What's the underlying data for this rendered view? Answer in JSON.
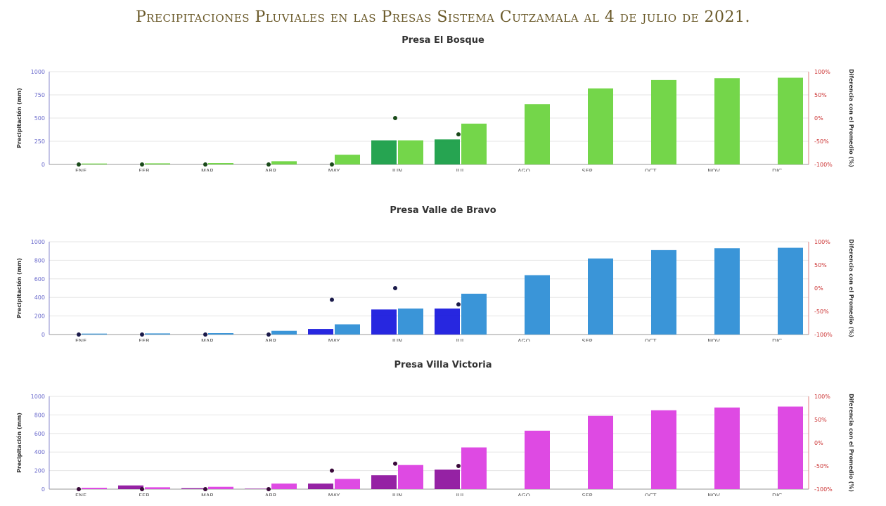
{
  "title": "Precipitaciones Pluviales en las Presas Sistema Cutzamala al 4 de julio de 2021.",
  "y_left_label": "Precipitación (mm)",
  "y_right_label": "Diferencia con el Promedio (%)",
  "chart_data": [
    {
      "type": "bar",
      "title": "Presa El Bosque",
      "categories": [
        "ENE",
        "FEB",
        "MAR",
        "ABR",
        "MAY",
        "JUN",
        "JUL",
        "AGO",
        "SEP",
        "OCT",
        "NOV",
        "DIC"
      ],
      "ylim": [
        0,
        1000
      ],
      "yticks": [
        0,
        250,
        500,
        750,
        1000
      ],
      "y2ticks": [
        "-100%",
        "-50%",
        "0%",
        "50%",
        "100%"
      ],
      "grid": true,
      "legend_position": "top-center",
      "colors": {
        "current": "#0e9a3e",
        "average": "#74d64a",
        "diff": "#1a4a1a"
      },
      "series": [
        {
          "values": [
            0,
            0,
            0,
            0,
            0,
            260,
            270,
            null,
            null,
            null,
            null,
            null
          ]
        },
        {
          "values": [
            10,
            12,
            15,
            35,
            105,
            260,
            440,
            650,
            820,
            910,
            930,
            935
          ]
        }
      ],
      "diff_markers": [
        -100,
        -100,
        -100,
        -100,
        -100,
        0,
        -35,
        null,
        null,
        null,
        null,
        null
      ]
    },
    {
      "type": "bar",
      "title": "Presa Valle de Bravo",
      "categories": [
        "ENE",
        "FEB",
        "MAR",
        "ABR",
        "MAY",
        "JUN",
        "JUL",
        "AGO",
        "SEP",
        "OCT",
        "NOV",
        "DIC"
      ],
      "ylim": [
        0,
        1000
      ],
      "yticks": [
        0,
        200,
        400,
        600,
        800,
        1000
      ],
      "y2ticks": [
        "-100%",
        "-50%",
        "0%",
        "50%",
        "100%"
      ],
      "grid": true,
      "legend_position": "top-center",
      "colors": {
        "current": "#1010dd",
        "average": "#3a95d8",
        "diff": "#1a1a4a"
      },
      "series": [
        {
          "values": [
            0,
            0,
            0,
            0,
            60,
            270,
            280,
            null,
            null,
            null,
            null,
            null
          ]
        },
        {
          "values": [
            10,
            12,
            15,
            40,
            110,
            280,
            440,
            640,
            820,
            910,
            930,
            935
          ]
        }
      ],
      "diff_markers": [
        -100,
        -100,
        -100,
        -100,
        -25,
        0,
        -35,
        null,
        null,
        null,
        null,
        null
      ]
    },
    {
      "type": "bar",
      "title": "Presa Villa Victoria",
      "categories": [
        "ENE",
        "FEB",
        "MAR",
        "ABR",
        "MAY",
        "JUN",
        "JUL",
        "AGO",
        "SEP",
        "OCT",
        "NOV",
        "DIC"
      ],
      "ylim": [
        0,
        1000
      ],
      "yticks": [
        0,
        200,
        400,
        600,
        800,
        1000
      ],
      "y2ticks": [
        "-100%",
        "-50%",
        "0%",
        "50%",
        "100%"
      ],
      "grid": true,
      "legend_position": "top-center",
      "colors": {
        "current": "#8a0a9a",
        "average": "#de4ae3",
        "diff": "#3a0a3a"
      },
      "series": [
        {
          "values": [
            0,
            40,
            10,
            5,
            60,
            150,
            210,
            null,
            null,
            null,
            null,
            null
          ]
        },
        {
          "values": [
            15,
            20,
            25,
            60,
            110,
            260,
            450,
            630,
            790,
            850,
            880,
            890
          ]
        }
      ],
      "diff_markers": [
        -100,
        -100,
        -100,
        -100,
        -60,
        -45,
        -50,
        null,
        null,
        null,
        null,
        null
      ]
    }
  ]
}
